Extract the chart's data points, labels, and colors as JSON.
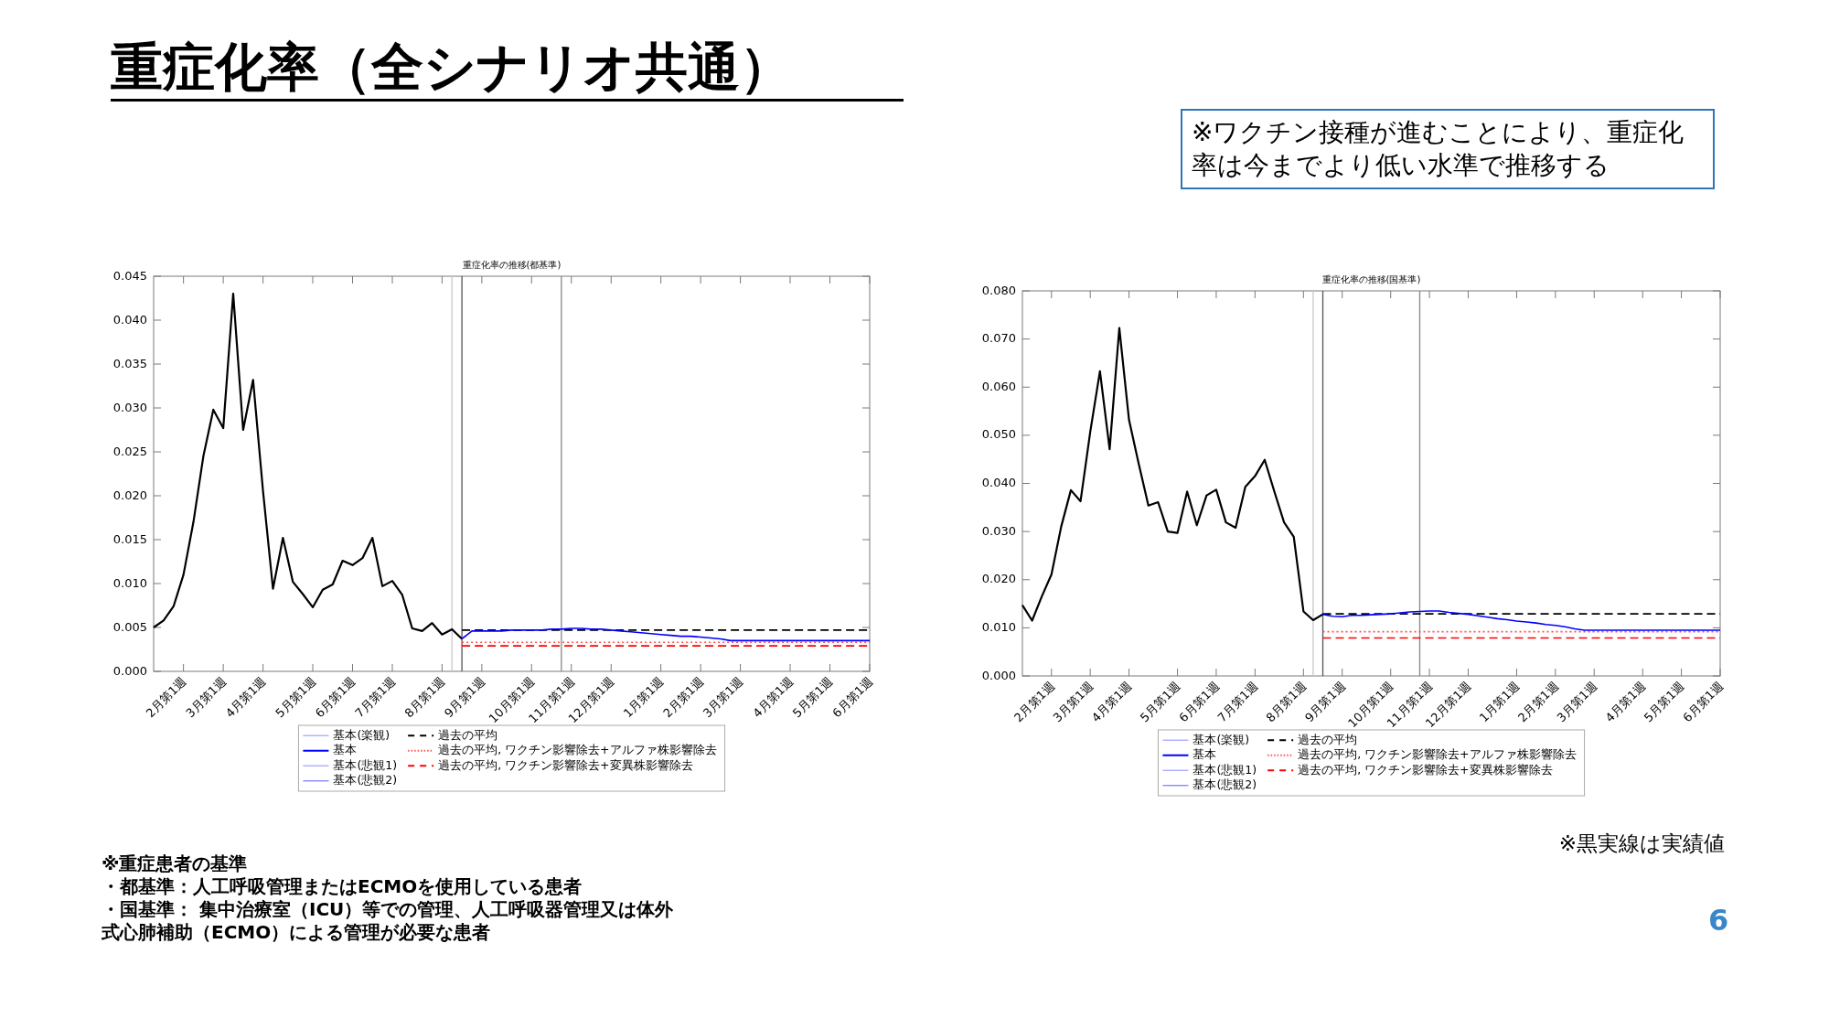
{
  "chart_data": [
    {
      "type": "other",
      "title": "重症化率（全シナリオ共通）",
      "annotations": [
        "※ワクチン接種が進むことにより、重症化率は今までより低い水準で推移する",
        "※重症患者の基準",
        "・都基準：人工呼吸管理またはECMOを使用している患者",
        "・国基準： 集中治療室（ICU）等での管理、人工呼吸器管理又は体外式心肺補助（ECMO）による管理が必要な患者",
        "※黒実線は実績値",
        "6"
      ]
    },
    {
      "type": "line",
      "title": "重症化率の推移(都基準)",
      "categories": [
        null,
        null,
        null,
        "2月第1週",
        null,
        null,
        null,
        "3月第1週",
        null,
        null,
        null,
        "4月第1週",
        null,
        null,
        null,
        null,
        "5月第1週",
        null,
        null,
        null,
        "6月第1週",
        null,
        null,
        null,
        "7月第1週",
        null,
        null,
        null,
        null,
        "8月第1週",
        null,
        null,
        null,
        "9月第1週",
        null,
        null,
        null,
        null,
        "10月第1週",
        null,
        null,
        null,
        "11月第1週",
        null,
        null,
        null,
        "12月第1週",
        null,
        null,
        null,
        null,
        "1月第1週",
        null,
        null,
        null,
        "2月第1週",
        null,
        null,
        null,
        "3月第1週",
        null,
        null,
        null,
        null,
        "4月第1週",
        null,
        null,
        null,
        "5月第1週",
        null,
        null,
        null,
        "6月第1週"
      ],
      "ylim": [
        0,
        0.045
      ],
      "yticks": [
        {
          "value": 0,
          "label": "0.000"
        },
        {
          "value": 0.005,
          "label": "0.005"
        },
        {
          "value": 0.01,
          "label": "0.010"
        },
        {
          "value": 0.015,
          "label": "0.015"
        },
        {
          "value": 0.02,
          "label": "0.020"
        },
        {
          "value": 0.025,
          "label": "0.025"
        },
        {
          "value": 0.03,
          "label": "0.030"
        },
        {
          "value": 0.035,
          "label": "0.035"
        },
        {
          "value": 0.04,
          "label": "0.040"
        },
        {
          "value": 0.045,
          "label": "0.045"
        }
      ],
      "legend": "bottom",
      "series": [
        {
          "color": "#000000",
          "values": [
            0.005,
            0.0058,
            0.0074,
            0.011,
            0.017,
            0.0245,
            0.0298,
            0.0277,
            0.043,
            0.0275,
            0.0332,
            0.0205,
            0.0094,
            0.0152,
            0.0102,
            0.0088,
            0.0073,
            0.0093,
            0.0099,
            0.0126,
            0.0121,
            0.0129,
            0.0152,
            0.0097,
            0.0103,
            0.0087,
            0.0049,
            0.0046,
            0.0055,
            0.0042,
            0.0048,
            0.0037,
            null,
            null,
            null,
            null,
            null,
            null,
            null,
            null,
            null,
            null,
            null,
            null,
            null,
            null,
            null,
            null,
            null,
            null,
            null,
            null,
            null,
            null,
            null,
            null,
            null,
            null,
            null,
            null,
            null,
            null,
            null,
            null,
            null,
            null,
            null,
            null,
            null,
            null,
            null,
            null,
            null
          ]
        },
        {
          "name": "基本(楽観)",
          "color": "#a6a6ff",
          "values": [
            null,
            null,
            null,
            null,
            null,
            null,
            null,
            null,
            null,
            null,
            null,
            null,
            null,
            null,
            null,
            null,
            null,
            null,
            null,
            null,
            null,
            null,
            null,
            null,
            null,
            null,
            null,
            null,
            null,
            null,
            null,
            null,
            null,
            null,
            null,
            null,
            null,
            null,
            null,
            null,
            null,
            null,
            null,
            null,
            null,
            null,
            null,
            null,
            null,
            null,
            null,
            null,
            null,
            null,
            null,
            null,
            null,
            null,
            null,
            null,
            null,
            null,
            null,
            null,
            null,
            null,
            null,
            null,
            null,
            null,
            null,
            null,
            null
          ]
        },
        {
          "name": "基本",
          "color": "#0000ff",
          "values": [
            null,
            null,
            null,
            null,
            null,
            null,
            null,
            null,
            null,
            null,
            null,
            null,
            null,
            null,
            null,
            null,
            null,
            null,
            null,
            null,
            null,
            null,
            null,
            null,
            null,
            null,
            null,
            null,
            null,
            null,
            null,
            0.0037,
            0.0046,
            0.0046,
            0.0046,
            0.0046,
            0.0047,
            0.0047,
            0.0047,
            0.0047,
            0.0048,
            0.0048,
            0.0049,
            0.0049,
            0.0048,
            0.0048,
            0.0047,
            0.0046,
            0.0045,
            0.0044,
            0.0043,
            0.0042,
            0.0041,
            0.004,
            0.004,
            0.0039,
            0.0038,
            0.0037,
            0.0035,
            0.0035,
            0.0035,
            0.0035,
            0.0035,
            0.0035,
            0.0035,
            0.0035,
            0.0035,
            0.0035,
            0.0035,
            0.0035,
            0.0035,
            0.0035,
            0.0035
          ]
        },
        {
          "name": "基本(悲観1)",
          "color": "#a6a6ff",
          "values": [
            null,
            null,
            null,
            null,
            null,
            null,
            null,
            null,
            null,
            null,
            null,
            null,
            null,
            null,
            null,
            null,
            null,
            null,
            null,
            null,
            null,
            null,
            null,
            null,
            null,
            null,
            null,
            null,
            null,
            null,
            null,
            null,
            null,
            null,
            null,
            null,
            null,
            null,
            null,
            null,
            null,
            null,
            null,
            null,
            null,
            null,
            null,
            null,
            null,
            null,
            null,
            null,
            null,
            null,
            null,
            null,
            null,
            null,
            null,
            null,
            null,
            null,
            null,
            null,
            null,
            null,
            null,
            null,
            null,
            null,
            null,
            null,
            null
          ]
        },
        {
          "name": "基本(悲観2)",
          "color": "#8080ff",
          "values": [
            null,
            null,
            null,
            null,
            null,
            null,
            null,
            null,
            null,
            null,
            null,
            null,
            null,
            null,
            null,
            null,
            null,
            null,
            null,
            null,
            null,
            null,
            null,
            null,
            null,
            null,
            null,
            null,
            null,
            null,
            null,
            null,
            null,
            null,
            null,
            null,
            null,
            null,
            null,
            null,
            null,
            null,
            null,
            null,
            null,
            null,
            null,
            null,
            null,
            null,
            null,
            null,
            null,
            null,
            null,
            null,
            null,
            null,
            null,
            null,
            null,
            null,
            null,
            null,
            null,
            null,
            null,
            null,
            null,
            null,
            null,
            null,
            null
          ]
        },
        {
          "name": "過去の平均",
          "color": "#000000",
          "line_style": "dashed",
          "values": [
            null,
            null,
            null,
            null,
            null,
            null,
            null,
            null,
            null,
            null,
            null,
            null,
            null,
            null,
            null,
            null,
            null,
            null,
            null,
            null,
            null,
            null,
            null,
            null,
            null,
            null,
            null,
            null,
            null,
            null,
            null,
            0.0047,
            0.0047,
            0.0047,
            0.0047,
            0.0047,
            0.0047,
            0.0047,
            0.0047,
            0.0047,
            0.0047,
            0.0047,
            0.0047,
            0.0047,
            0.0047,
            0.0047,
            0.0047,
            0.0047,
            0.0047,
            0.0047,
            0.0047,
            0.0047,
            0.0047,
            0.0047,
            0.0047,
            0.0047,
            0.0047,
            0.0047,
            0.0047,
            0.0047,
            0.0047,
            0.0047,
            0.0047,
            0.0047,
            0.0047,
            0.0047,
            0.0047,
            0.0047,
            0.0047,
            0.0047,
            0.0047,
            0.0047,
            0.0047
          ]
        },
        {
          "name": "過去の平均, ワクチン影響除去+アルファ株影響除去",
          "color": "#ff5050",
          "line_style": "dotted",
          "values": [
            null,
            null,
            null,
            null,
            null,
            null,
            null,
            null,
            null,
            null,
            null,
            null,
            null,
            null,
            null,
            null,
            null,
            null,
            null,
            null,
            null,
            null,
            null,
            null,
            null,
            null,
            null,
            null,
            null,
            null,
            null,
            0.0033,
            0.0033,
            0.0033,
            0.0033,
            0.0033,
            0.0033,
            0.0033,
            0.0033,
            0.0033,
            0.0033,
            0.0033,
            0.0033,
            0.0033,
            0.0033,
            0.0033,
            0.0033,
            0.0033,
            0.0033,
            0.0033,
            0.0033,
            0.0033,
            0.0033,
            0.0033,
            0.0033,
            0.0033,
            0.0033,
            0.0033,
            0.0033,
            0.0033,
            0.0033,
            0.0033,
            0.0033,
            0.0033,
            0.0033,
            0.0033,
            0.0033,
            0.0033,
            0.0033,
            0.0033,
            0.0033,
            0.0033,
            0.0033
          ]
        },
        {
          "name": "過去の平均, ワクチン影響除去+変異株影響除去",
          "color": "#ff0000",
          "line_style": "dashed",
          "values": [
            null,
            null,
            null,
            null,
            null,
            null,
            null,
            null,
            null,
            null,
            null,
            null,
            null,
            null,
            null,
            null,
            null,
            null,
            null,
            null,
            null,
            null,
            null,
            null,
            null,
            null,
            null,
            null,
            null,
            null,
            null,
            0.0029,
            0.0029,
            0.0029,
            0.0029,
            0.0029,
            0.0029,
            0.0029,
            0.0029,
            0.0029,
            0.0029,
            0.0029,
            0.0029,
            0.0029,
            0.0029,
            0.0029,
            0.0029,
            0.0029,
            0.0029,
            0.0029,
            0.0029,
            0.0029,
            0.0029,
            0.0029,
            0.0029,
            0.0029,
            0.0029,
            0.0029,
            0.0029,
            0.0029,
            0.0029,
            0.0029,
            0.0029,
            0.0029,
            0.0029,
            0.0029,
            0.0029,
            0.0029,
            0.0029,
            0.0029,
            0.0029,
            0.0029,
            0.0029
          ]
        }
      ]
    },
    {
      "type": "line",
      "title": "重症化率の推移(国基準)",
      "categories": [
        null,
        null,
        null,
        "2月第1週",
        null,
        null,
        null,
        "3月第1週",
        null,
        null,
        null,
        "4月第1週",
        null,
        null,
        null,
        null,
        "5月第1週",
        null,
        null,
        null,
        "6月第1週",
        null,
        null,
        null,
        "7月第1週",
        null,
        null,
        null,
        null,
        "8月第1週",
        null,
        null,
        null,
        "9月第1週",
        null,
        null,
        null,
        null,
        "10月第1週",
        null,
        null,
        null,
        "11月第1週",
        null,
        null,
        null,
        "12月第1週",
        null,
        null,
        null,
        null,
        "1月第1週",
        null,
        null,
        null,
        "2月第1週",
        null,
        null,
        null,
        "3月第1週",
        null,
        null,
        null,
        null,
        "4月第1週",
        null,
        null,
        null,
        "5月第1週",
        null,
        null,
        null,
        "6月第1週"
      ],
      "ylim": [
        0,
        0.08
      ],
      "yticks": [
        {
          "value": 0,
          "label": "0.000"
        },
        {
          "value": 0.01,
          "label": "0.010"
        },
        {
          "value": 0.02,
          "label": "0.020"
        },
        {
          "value": 0.03,
          "label": "0.030"
        },
        {
          "value": 0.04,
          "label": "0.040"
        },
        {
          "value": 0.05,
          "label": "0.050"
        },
        {
          "value": 0.06,
          "label": "0.060"
        },
        {
          "value": 0.07,
          "label": "0.070"
        },
        {
          "value": 0.08,
          "label": "0.080"
        }
      ],
      "legend": "bottom",
      "series": [
        {
          "color": "#000000",
          "values": [
            0.0147,
            0.0115,
            0.0165,
            0.0211,
            0.031,
            0.0386,
            0.0363,
            0.0507,
            0.0633,
            0.0471,
            0.0723,
            0.0532,
            0.0441,
            0.0354,
            0.0361,
            0.03,
            0.0297,
            0.0383,
            0.0313,
            0.0375,
            0.0387,
            0.0319,
            0.0308,
            0.0393,
            0.0415,
            0.0449,
            0.0383,
            0.0319,
            0.0289,
            0.0134,
            0.0116,
            0.0128,
            null,
            null,
            null,
            null,
            null,
            null,
            null,
            null,
            null,
            null,
            null,
            null,
            null,
            null,
            null,
            null,
            null,
            null,
            null,
            null,
            null,
            null,
            null,
            null,
            null,
            null,
            null,
            null,
            null,
            null,
            null,
            null,
            null,
            null,
            null,
            null,
            null,
            null,
            null,
            null,
            null
          ]
        },
        {
          "name": "基本(楽観)",
          "color": "#a6a6ff",
          "values": [
            null,
            null,
            null,
            null,
            null,
            null,
            null,
            null,
            null,
            null,
            null,
            null,
            null,
            null,
            null,
            null,
            null,
            null,
            null,
            null,
            null,
            null,
            null,
            null,
            null,
            null,
            null,
            null,
            null,
            null,
            null,
            null,
            null,
            null,
            null,
            null,
            null,
            null,
            null,
            null,
            null,
            null,
            null,
            null,
            null,
            null,
            null,
            null,
            null,
            null,
            null,
            null,
            null,
            null,
            null,
            null,
            null,
            null,
            null,
            null,
            null,
            null,
            null,
            null,
            null,
            null,
            null,
            null,
            null,
            null,
            null,
            null,
            null
          ]
        },
        {
          "name": "基本",
          "color": "#0000ff",
          "values": [
            null,
            null,
            null,
            null,
            null,
            null,
            null,
            null,
            null,
            null,
            null,
            null,
            null,
            null,
            null,
            null,
            null,
            null,
            null,
            null,
            null,
            null,
            null,
            null,
            null,
            null,
            null,
            null,
            null,
            null,
            null,
            0.0128,
            0.0124,
            0.0123,
            0.0126,
            0.0126,
            0.0127,
            0.0128,
            0.0129,
            0.0131,
            0.0133,
            0.0134,
            0.0135,
            0.0135,
            0.0132,
            0.013,
            0.0128,
            0.0125,
            0.0122,
            0.0119,
            0.0117,
            0.0114,
            0.0112,
            0.011,
            0.0107,
            0.0105,
            0.0102,
            0.0098,
            0.0095,
            0.0095,
            0.0095,
            0.0095,
            0.0095,
            0.0095,
            0.0095,
            0.0095,
            0.0095,
            0.0095,
            0.0095,
            0.0095,
            0.0095,
            0.0095,
            0.0095
          ]
        },
        {
          "name": "基本(悲観1)",
          "color": "#a6a6ff",
          "values": [
            null,
            null,
            null,
            null,
            null,
            null,
            null,
            null,
            null,
            null,
            null,
            null,
            null,
            null,
            null,
            null,
            null,
            null,
            null,
            null,
            null,
            null,
            null,
            null,
            null,
            null,
            null,
            null,
            null,
            null,
            null,
            null,
            null,
            null,
            null,
            null,
            null,
            null,
            null,
            null,
            null,
            null,
            null,
            null,
            null,
            null,
            null,
            null,
            null,
            null,
            null,
            null,
            null,
            null,
            null,
            null,
            null,
            null,
            null,
            null,
            null,
            null,
            null,
            null,
            null,
            null,
            null,
            null,
            null,
            null,
            null,
            null,
            null
          ]
        },
        {
          "name": "基本(悲観2)",
          "color": "#8080ff",
          "values": [
            null,
            null,
            null,
            null,
            null,
            null,
            null,
            null,
            null,
            null,
            null,
            null,
            null,
            null,
            null,
            null,
            null,
            null,
            null,
            null,
            null,
            null,
            null,
            null,
            null,
            null,
            null,
            null,
            null,
            null,
            null,
            null,
            null,
            null,
            null,
            null,
            null,
            null,
            null,
            null,
            null,
            null,
            null,
            null,
            null,
            null,
            null,
            null,
            null,
            null,
            null,
            null,
            null,
            null,
            null,
            null,
            null,
            null,
            null,
            null,
            null,
            null,
            null,
            null,
            null,
            null,
            null,
            null,
            null,
            null,
            null,
            null,
            null
          ]
        },
        {
          "name": "過去の平均",
          "color": "#000000",
          "line_style": "dashed",
          "values": [
            null,
            null,
            null,
            null,
            null,
            null,
            null,
            null,
            null,
            null,
            null,
            null,
            null,
            null,
            null,
            null,
            null,
            null,
            null,
            null,
            null,
            null,
            null,
            null,
            null,
            null,
            null,
            null,
            null,
            null,
            null,
            0.0129,
            0.0129,
            0.0129,
            0.0129,
            0.0129,
            0.0129,
            0.0129,
            0.0129,
            0.0129,
            0.0129,
            0.0129,
            0.0129,
            0.0129,
            0.0129,
            0.0129,
            0.0129,
            0.0129,
            0.0129,
            0.0129,
            0.0129,
            0.0129,
            0.0129,
            0.0129,
            0.0129,
            0.0129,
            0.0129,
            0.0129,
            0.0129,
            0.0129,
            0.0129,
            0.0129,
            0.0129,
            0.0129,
            0.0129,
            0.0129,
            0.0129,
            0.0129,
            0.0129,
            0.0129,
            0.0129,
            0.0129,
            0.0129
          ]
        },
        {
          "name": "過去の平均, ワクチン影響除去+アルファ株影響除去",
          "color": "#ff5050",
          "line_style": "dotted",
          "values": [
            null,
            null,
            null,
            null,
            null,
            null,
            null,
            null,
            null,
            null,
            null,
            null,
            null,
            null,
            null,
            null,
            null,
            null,
            null,
            null,
            null,
            null,
            null,
            null,
            null,
            null,
            null,
            null,
            null,
            null,
            null,
            0.0092,
            0.0092,
            0.0092,
            0.0092,
            0.0092,
            0.0092,
            0.0092,
            0.0092,
            0.0092,
            0.0092,
            0.0092,
            0.0092,
            0.0092,
            0.0092,
            0.0092,
            0.0092,
            0.0092,
            0.0092,
            0.0092,
            0.0092,
            0.0092,
            0.0092,
            0.0092,
            0.0092,
            0.0092,
            0.0092,
            0.0092,
            0.0092,
            0.0092,
            0.0092,
            0.0092,
            0.0092,
            0.0092,
            0.0092,
            0.0092,
            0.0092,
            0.0092,
            0.0092,
            0.0092,
            0.0092,
            0.0092,
            0.0092
          ]
        },
        {
          "name": "過去の平均, ワクチン影響除去+変異株影響除去",
          "color": "#ff0000",
          "line_style": "dashed",
          "values": [
            null,
            null,
            null,
            null,
            null,
            null,
            null,
            null,
            null,
            null,
            null,
            null,
            null,
            null,
            null,
            null,
            null,
            null,
            null,
            null,
            null,
            null,
            null,
            null,
            null,
            null,
            null,
            null,
            null,
            null,
            null,
            0.0079,
            0.0079,
            0.0079,
            0.0079,
            0.0079,
            0.0079,
            0.0079,
            0.0079,
            0.0079,
            0.0079,
            0.0079,
            0.0079,
            0.0079,
            0.0079,
            0.0079,
            0.0079,
            0.0079,
            0.0079,
            0.0079,
            0.0079,
            0.0079,
            0.0079,
            0.0079,
            0.0079,
            0.0079,
            0.0079,
            0.0079,
            0.0079,
            0.0079,
            0.0079,
            0.0079,
            0.0079,
            0.0079,
            0.0079,
            0.0079,
            0.0079,
            0.0079,
            0.0079,
            0.0079,
            0.0079,
            0.0079,
            0.0079
          ]
        }
      ]
    }
  ]
}
